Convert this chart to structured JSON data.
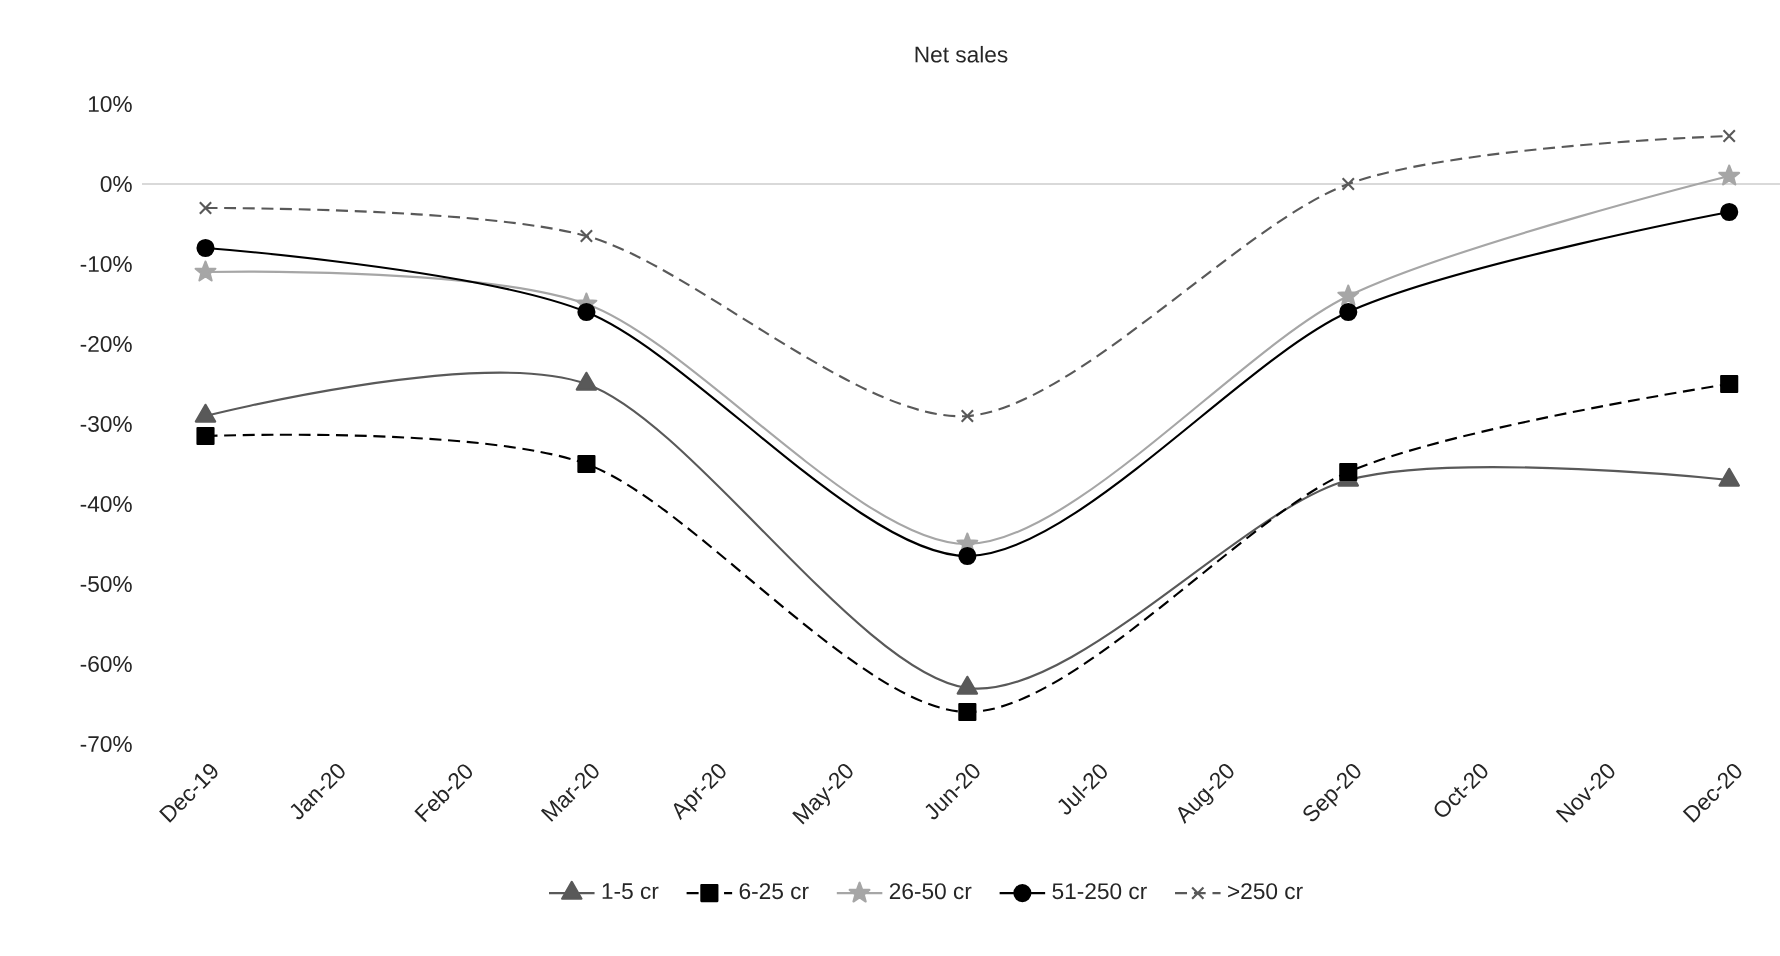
{
  "chart_data": {
    "type": "line",
    "title": "Net sales",
    "categories": [
      "Dec-19",
      "Jan-20",
      "Feb-20",
      "Mar-20",
      "Apr-20",
      "May-20",
      "Jun-20",
      "Jul-20",
      "Aug-20",
      "Sep-20",
      "Oct-20",
      "Nov-20",
      "Dec-20"
    ],
    "series": [
      {
        "name": "1-5 cr",
        "color": "#595959",
        "marker": "triangle",
        "line_style": "solid",
        "values": [
          -29,
          null,
          null,
          -25,
          null,
          null,
          -63,
          null,
          null,
          -37,
          null,
          null,
          -37
        ]
      },
      {
        "name": "6-25 cr",
        "color": "#000000",
        "marker": "square",
        "line_style": "dashed",
        "values": [
          -31.5,
          null,
          null,
          -35,
          null,
          null,
          -66,
          null,
          null,
          -36,
          null,
          null,
          -25
        ]
      },
      {
        "name": "26-50 cr",
        "color": "#a6a6a6",
        "marker": "star",
        "line_style": "solid",
        "values": [
          -11,
          null,
          null,
          -15,
          null,
          null,
          -45,
          null,
          null,
          -14,
          null,
          null,
          1
        ]
      },
      {
        "name": "51-250 cr",
        "color": "#000000",
        "marker": "circle",
        "line_style": "solid",
        "values": [
          -8,
          null,
          null,
          -16,
          null,
          null,
          -46.5,
          null,
          null,
          -16,
          null,
          null,
          -3.5
        ]
      },
      {
        "name": ">250 cr",
        "color": "#595959",
        "marker": "cross",
        "line_style": "dashed",
        "values": [
          -3,
          null,
          null,
          -6.5,
          null,
          null,
          -29,
          null,
          null,
          0,
          null,
          null,
          6
        ]
      }
    ],
    "ylim": [
      -70,
      10
    ],
    "yticks": [
      {
        "value": -70,
        "label": "-70%"
      },
      {
        "value": -60,
        "label": "-60%"
      },
      {
        "value": -50,
        "label": "-50%"
      },
      {
        "value": -40,
        "label": "-40%"
      },
      {
        "value": -30,
        "label": "-30%"
      },
      {
        "value": -20,
        "label": "-20%"
      },
      {
        "value": -10,
        "label": "-10%"
      },
      {
        "value": 0,
        "label": "0%"
      },
      {
        "value": 10,
        "label": "10%"
      }
    ],
    "ref_lines": [
      {
        "axis": "y",
        "value": 0,
        "color": "#d9d9d9"
      }
    ],
    "grid": false,
    "legend": "bottom"
  }
}
